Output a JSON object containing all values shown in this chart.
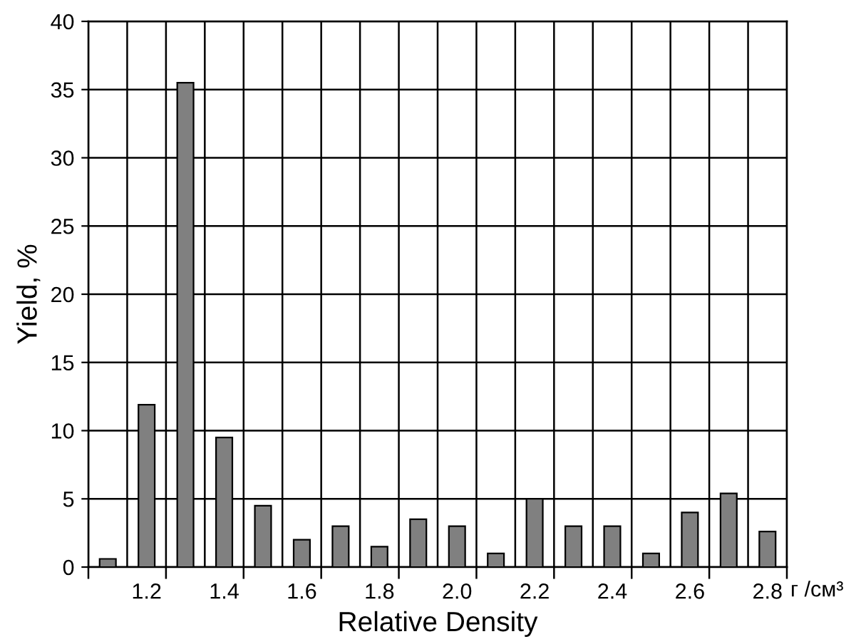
{
  "chart_data": {
    "type": "bar",
    "xlabel": "Relative Density",
    "ylabel": "Yield, %",
    "annotations": [
      "г /см³"
    ],
    "categories": [
      null,
      "1.2",
      null,
      "1.4",
      null,
      "1.6",
      null,
      "1.8",
      null,
      "2.0",
      null,
      "2.2",
      null,
      "2.4",
      null,
      "2.6",
      null,
      "2.8"
    ],
    "values": [
      0.6,
      11.9,
      35.5,
      9.5,
      4.5,
      2,
      3,
      1.5,
      3.5,
      3,
      1,
      5,
      3,
      3,
      1,
      4,
      5.4,
      2.6
    ],
    "color": "#808080",
    "ylim": [
      0,
      40
    ],
    "yticks": [
      0,
      5,
      10,
      15,
      20,
      25,
      30,
      35,
      40
    ],
    "grid": true
  }
}
